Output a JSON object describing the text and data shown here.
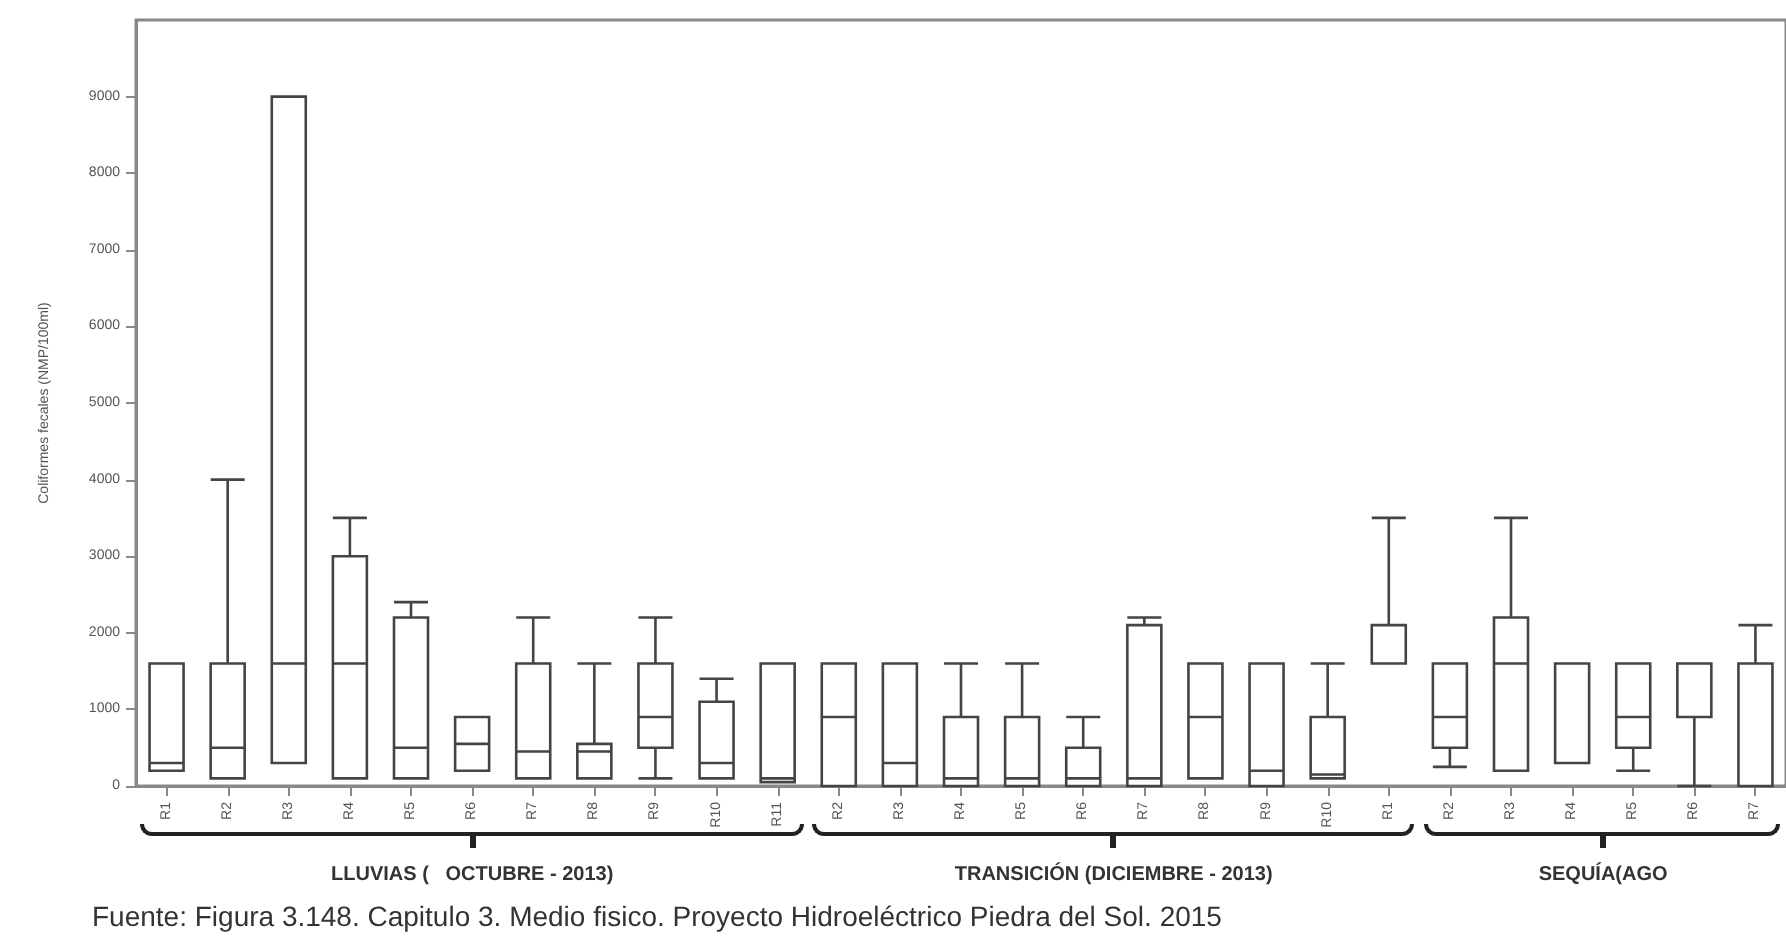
{
  "chart_data": {
    "type": "box",
    "ylabel": "Coliformes fecales (NMP/100ml)",
    "categories": [
      "R1",
      "R2",
      "R3",
      "R4",
      "R5",
      "R6",
      "R7",
      "R8",
      "R9",
      "R10",
      "R11",
      "R2",
      "R3",
      "R4",
      "R5",
      "R6",
      "R7",
      "R8",
      "R9",
      "R10",
      "R1",
      "R2",
      "R3",
      "R4",
      "R5",
      "R6",
      "R7"
    ],
    "series": [
      {
        "color": "#444444",
        "boxes": [
          {
            "low": 200,
            "q1": 200,
            "median": 300,
            "q3": 1600,
            "high": 1600
          },
          {
            "low": 100,
            "q1": 100,
            "median": 500,
            "q3": 1600,
            "high": 4000
          },
          {
            "low": 300,
            "q1": 300,
            "median": 1600,
            "q3": 9000,
            "high": 9000
          },
          {
            "low": 100,
            "q1": 100,
            "median": 1600,
            "q3": 3000,
            "high": 3500
          },
          {
            "low": 100,
            "q1": 100,
            "median": 500,
            "q3": 2200,
            "high": 2400
          },
          {
            "low": 200,
            "q1": 200,
            "median": 550,
            "q3": 900,
            "high": 900
          },
          {
            "low": 100,
            "q1": 100,
            "median": 450,
            "q3": 1600,
            "high": 2200
          },
          {
            "low": 100,
            "q1": 100,
            "median": 450,
            "q3": 550,
            "high": 1600
          },
          {
            "low": 100,
            "q1": 500,
            "median": 900,
            "q3": 1600,
            "high": 2200
          },
          {
            "low": 100,
            "q1": 100,
            "median": 300,
            "q3": 1100,
            "high": 1400
          },
          {
            "low": 50,
            "q1": 50,
            "median": 100,
            "q3": 1600,
            "high": 1600
          },
          {
            "low": 0,
            "q1": 0,
            "median": 900,
            "q3": 1600,
            "high": 1600
          },
          {
            "low": 0,
            "q1": 0,
            "median": 300,
            "q3": 1600,
            "high": 1600
          },
          {
            "low": 0,
            "q1": 0,
            "median": 100,
            "q3": 900,
            "high": 1600
          },
          {
            "low": 0,
            "q1": 0,
            "median": 100,
            "q3": 900,
            "high": 1600
          },
          {
            "low": 0,
            "q1": 0,
            "median": 100,
            "q3": 500,
            "high": 900
          },
          {
            "low": 0,
            "q1": 0,
            "median": 100,
            "q3": 2100,
            "high": 2200
          },
          {
            "low": 100,
            "q1": 100,
            "median": 900,
            "q3": 1600,
            "high": 1600
          },
          {
            "low": 0,
            "q1": 0,
            "median": 200,
            "q3": 1600,
            "high": 1600
          },
          {
            "low": 100,
            "q1": 100,
            "median": 150,
            "q3": 900,
            "high": 1600
          },
          {
            "low": 1600,
            "q1": 1600,
            "median": 1600,
            "q3": 2100,
            "high": 3500
          },
          {
            "low": 250,
            "q1": 500,
            "median": 900,
            "q3": 1600,
            "high": 1600
          },
          {
            "low": 200,
            "q1": 200,
            "median": 1600,
            "q3": 2200,
            "high": 3500
          },
          {
            "low": 300,
            "q1": 300,
            "median": 300,
            "q3": 1600,
            "high": 1600
          },
          {
            "low": 200,
            "q1": 500,
            "median": 900,
            "q3": 1600,
            "high": 1600
          },
          {
            "low": 0,
            "q1": 900,
            "median": 900,
            "q3": 1600,
            "high": 1600
          },
          {
            "low": 0,
            "q1": 0,
            "median": 0,
            "q3": 1600,
            "high": 2100
          }
        ]
      }
    ],
    "ylim": [
      0,
      10000
    ],
    "yticks": [
      0,
      1000,
      2000,
      3000,
      4000,
      5000,
      6000,
      7000,
      8000,
      9000
    ],
    "grid": false,
    "annotations": [
      "LLUVIAS (   OCTUBRE - 2013)",
      "TRANSICIÓN (DICIEMBRE - 2013)",
      "SEQUÍA(AGO",
      "Fuente: Figura 3.148. Capitulo 3. Medio fisico. Proyecto Hidroeléctrico Piedra del Sol. 2015"
    ]
  }
}
